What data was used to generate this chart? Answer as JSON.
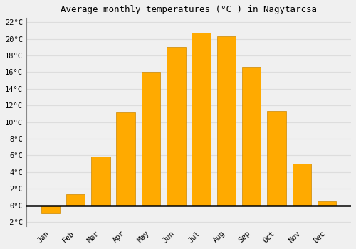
{
  "title": "Average monthly temperatures (°C ) in Nagytarcsa",
  "months": [
    "Jan",
    "Feb",
    "Mar",
    "Apr",
    "May",
    "Jun",
    "Jul",
    "Aug",
    "Sep",
    "Oct",
    "Nov",
    "Dec"
  ],
  "values": [
    -1.0,
    1.3,
    5.9,
    11.2,
    16.0,
    19.0,
    20.7,
    20.3,
    16.6,
    11.3,
    5.0,
    0.5
  ],
  "bar_color": "#FFAA00",
  "bar_edge_color": "#CC8800",
  "background_color": "#F0F0F0",
  "grid_color": "#DDDDDD",
  "ylim_min": -2.5,
  "ylim_max": 22.5,
  "yticks": [
    -2,
    0,
    2,
    4,
    6,
    8,
    10,
    12,
    14,
    16,
    18,
    20,
    22
  ],
  "title_fontsize": 9,
  "tick_fontsize": 7.5,
  "font_family": "monospace",
  "bar_width": 0.75
}
